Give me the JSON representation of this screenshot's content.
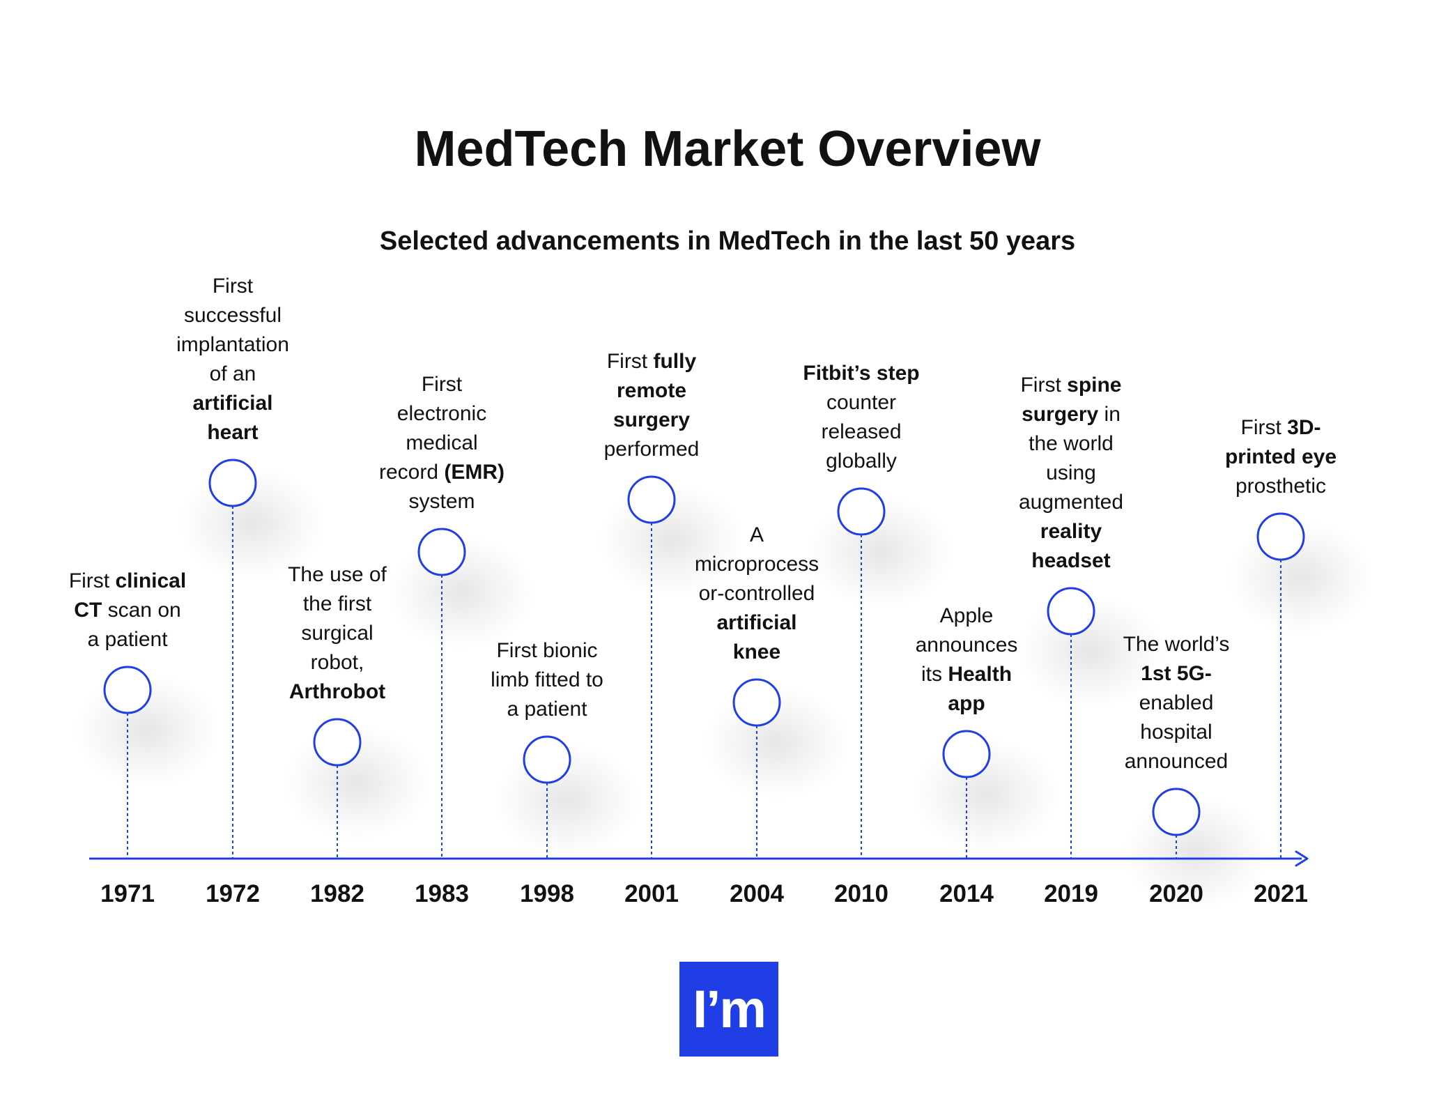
{
  "title": "MedTech Market Overview",
  "subtitle": "Selected advancements in MedTech in the last 50 years",
  "colors": {
    "accent": "#1f3ee6",
    "text": "#111111",
    "background": "#ffffff"
  },
  "events": [
    {
      "year": "1971",
      "parts": [
        {
          "t": "First "
        },
        {
          "t": "clinical",
          "b": true
        },
        {
          "t": " "
        },
        {
          "t": "CT",
          "b": true
        },
        {
          "t": " scan on a patient"
        }
      ],
      "lines": [
        "First <b>clinical</b>",
        "<b>CT</b> scan on",
        "a patient"
      ]
    },
    {
      "year": "1972",
      "lines": [
        "First",
        "successful",
        "implantation",
        "of an",
        "<b>artificial</b>",
        "<b>heart</b>"
      ]
    },
    {
      "year": "1982",
      "lines": [
        "The use of",
        "the first",
        "surgical",
        "robot,",
        "<b>Arthrobot</b>"
      ]
    },
    {
      "year": "1983",
      "lines": [
        "First",
        "electronic",
        "medical",
        "record <b>(EMR)</b>",
        "system"
      ]
    },
    {
      "year": "1998",
      "lines": [
        "First bionic",
        "limb fitted to",
        "a patient"
      ]
    },
    {
      "year": "2001",
      "lines": [
        "First <b>fully</b>",
        "<b>remote</b>",
        "<b>surgery</b>",
        "performed"
      ]
    },
    {
      "year": "2004",
      "lines": [
        "A",
        "microprocess",
        "or-controlled",
        "<b>artificial</b>",
        "<b>knee</b>"
      ]
    },
    {
      "year": "2010",
      "lines": [
        "<b>Fitbit’s step</b>",
        "counter",
        "released",
        "globally"
      ]
    },
    {
      "year": "2014",
      "lines": [
        "Apple",
        "announces",
        "its <b>Health</b>",
        "<b>app</b>"
      ]
    },
    {
      "year": "2019",
      "lines": [
        "First <b>spine</b>",
        "<b>surgery</b> in",
        "the world",
        "using",
        "augmented",
        "<b>reality</b>",
        "<b>headset</b>"
      ]
    },
    {
      "year": "2020",
      "lines": [
        "The world’s",
        "<b>1st 5G-</b>",
        "enabled",
        "hospital",
        "announced"
      ]
    },
    {
      "year": "2021",
      "lines": [
        "First <b>3D-</b>",
        "<b>printed eye</b>",
        "prosthetic"
      ]
    }
  ],
  "logo": {
    "text": "I’m"
  }
}
